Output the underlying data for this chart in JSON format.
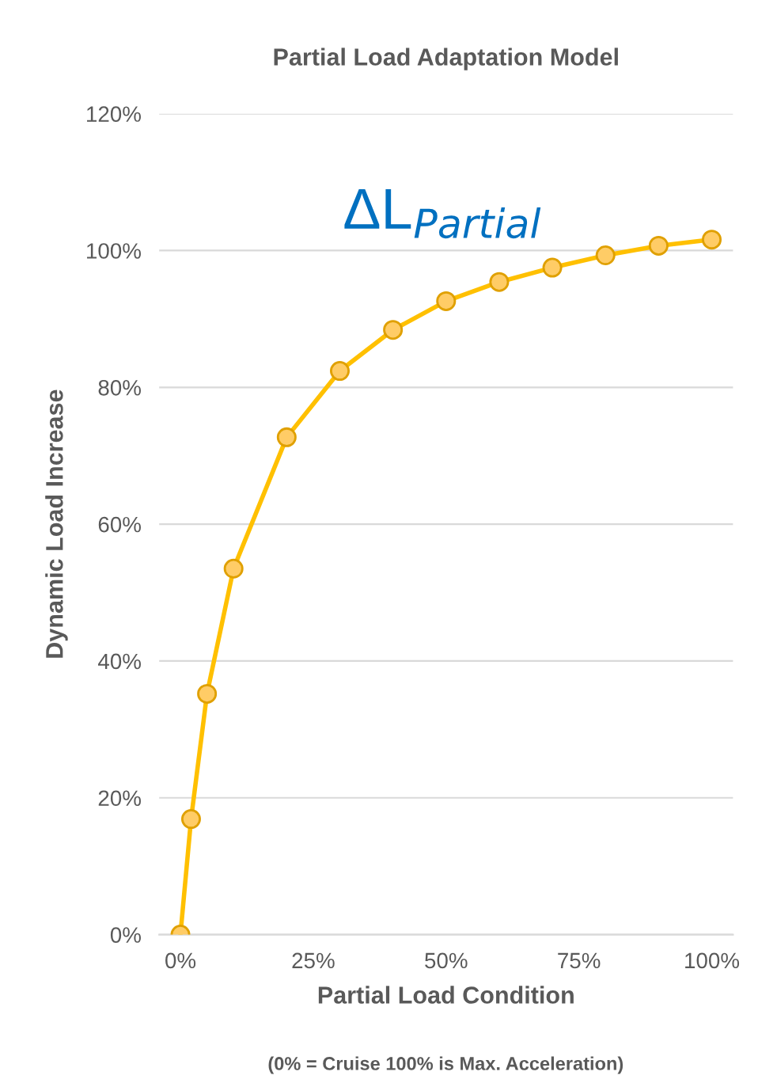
{
  "chart_data": {
    "type": "line",
    "title": "Partial Load Adaptation Model",
    "xlabel": "Partial Load Condition",
    "ylabel": "Dynamic Load Increase",
    "annotations": [
      "ΔL$_{Partial}$",
      "(0% = Cruise 100% is Max. Acceleration)"
    ],
    "x": [
      0,
      2,
      5,
      10,
      20,
      30,
      40,
      50,
      60,
      70,
      80,
      90,
      100
    ],
    "series": [
      {
        "color": "#ffc000",
        "values": [
          0,
          16.9,
          35.2,
          53.5,
          72.7,
          82.4,
          88.4,
          92.6,
          95.4,
          97.5,
          99.3,
          100.7,
          101.6
        ]
      }
    ],
    "xlim": [
      -4,
      104
    ],
    "xticks": [
      {
        "value": 0,
        "label": "0%"
      },
      {
        "value": 25,
        "label": "25%"
      },
      {
        "value": 50,
        "label": "50%"
      },
      {
        "value": 75,
        "label": "75%"
      },
      {
        "value": 100,
        "label": "100%"
      }
    ],
    "ylim": [
      0,
      120
    ],
    "yticks": [
      {
        "value": 0,
        "label": "0%"
      },
      {
        "value": 20,
        "label": "20%"
      },
      {
        "value": 40,
        "label": "40%"
      },
      {
        "value": 60,
        "label": "60%"
      },
      {
        "value": 80,
        "label": "80%"
      },
      {
        "value": 100,
        "label": "100%"
      },
      {
        "value": 120,
        "label": "120%"
      }
    ],
    "grid": "y",
    "marker": "circle",
    "line_style": "solid",
    "legend": false
  }
}
